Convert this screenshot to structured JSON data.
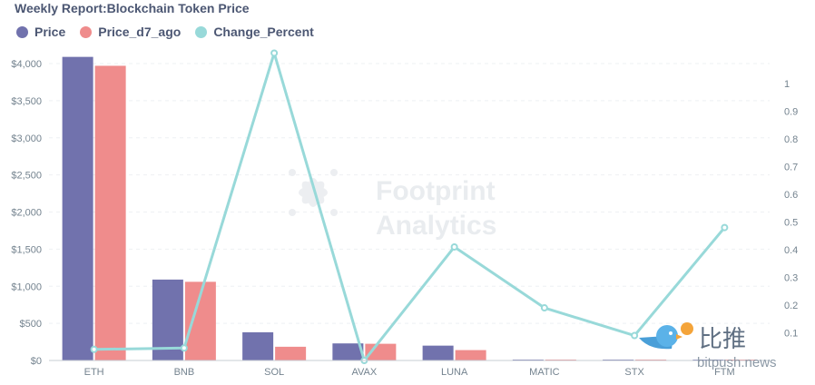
{
  "chart_data": {
    "type": "bar",
    "title": "Weekly Report:Blockchain Token Price",
    "categories": [
      "ETH",
      "BNB",
      "SOL",
      "AVAX",
      "LUNA",
      "MATIC",
      "STX",
      "FTM"
    ],
    "series": [
      {
        "name": "Price",
        "kind": "bar",
        "axis": "left",
        "color": "#7172ad",
        "values": [
          4090,
          1090,
          380,
          230,
          200,
          3,
          2,
          3
        ]
      },
      {
        "name": "Price_d7_ago",
        "kind": "bar",
        "axis": "left",
        "color": "#ef8c8c",
        "values": [
          3970,
          1060,
          185,
          225,
          140,
          2,
          2,
          2
        ]
      },
      {
        "name": "Change_Percent",
        "kind": "line",
        "axis": "right",
        "color": "#98d9d9",
        "values": [
          0.04,
          0.045,
          1.11,
          0.0,
          0.41,
          0.19,
          0.09,
          0.48
        ]
      }
    ],
    "y_left": {
      "min": 0,
      "max": 4000,
      "ticks": [
        0,
        500,
        1000,
        1500,
        2000,
        2500,
        3000,
        3500,
        4000
      ],
      "tick_labels": [
        "$0",
        "$500",
        "$1,000",
        "$1,500",
        "$2,000",
        "$2,500",
        "$3,000",
        "$3,500",
        "$4,000"
      ]
    },
    "y_right": {
      "min": 0,
      "max": 1,
      "ticks": [
        0.1,
        0.2,
        0.3,
        0.4,
        0.5,
        0.6,
        0.7,
        0.8,
        0.9,
        1
      ],
      "tick_labels": [
        "0.1",
        "0.2",
        "0.3",
        "0.4",
        "0.5",
        "0.6",
        "0.7",
        "0.8",
        "0.9",
        "1"
      ]
    },
    "xlabel": "",
    "ylabel": "",
    "grid": true,
    "legend": "top-left"
  },
  "watermarks": {
    "footprint_line1": "Footprint",
    "footprint_line2": "Analytics",
    "bitpush_cn": "比推",
    "bitpush_url": "bitpush.news"
  }
}
